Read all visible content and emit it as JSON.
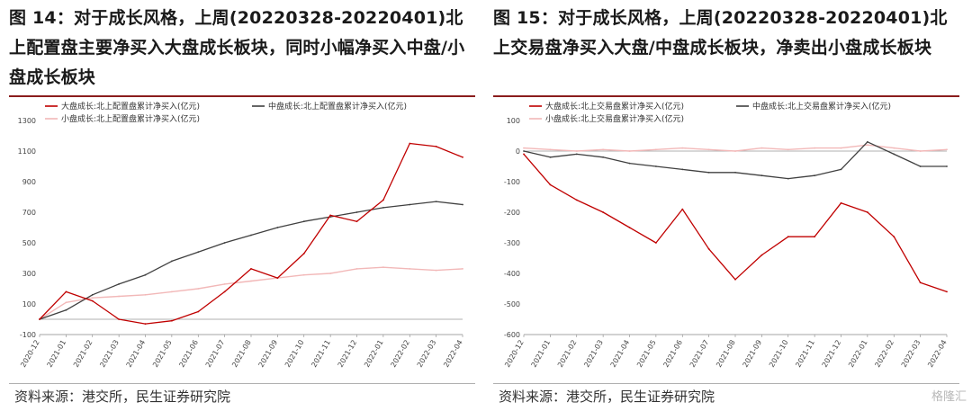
{
  "figures": [
    {
      "title": "图 14：对于成长风格，上周(20220328-20220401)北上配置盘主要净买入大盘成长板块，同时小幅净买入中盘/小盘成长板块",
      "source": "资料来源：港交所，民生证券研究院"
    },
    {
      "title": "图 15：对于成长风格，上周(20220328-20220401)北上交易盘净买入大盘/中盘成长板块，净卖出小盘成长板块",
      "source": "资料来源：港交所，民生证券研究院"
    }
  ],
  "watermark": "格隆汇",
  "colors": {
    "large": "#c00000",
    "mid": "#404040",
    "small": "#f2b8b8",
    "accent": "#8a1c1c"
  },
  "chart_data": [
    {
      "type": "line",
      "x": [
        "2020-12",
        "2021-01",
        "2021-02",
        "2021-03",
        "2021-04",
        "2021-05",
        "2021-06",
        "2021-07",
        "2021-08",
        "2021-09",
        "2021-10",
        "2021-11",
        "2021-12",
        "2022-01",
        "2022-02",
        "2022-03",
        "2022-04"
      ],
      "ylim": [
        -100,
        1300
      ],
      "yticks": [
        -100,
        100,
        300,
        500,
        700,
        900,
        1100,
        1300
      ],
      "series": [
        {
          "name": "大盘成长:北上配置盘累计净买入(亿元)",
          "values": [
            0,
            180,
            120,
            0,
            -30,
            -10,
            50,
            180,
            330,
            270,
            430,
            680,
            640,
            780,
            1150,
            1130,
            1060
          ]
        },
        {
          "name": "中盘成长:北上配置盘累计净买入(亿元)",
          "values": [
            0,
            60,
            160,
            230,
            290,
            380,
            440,
            500,
            550,
            600,
            640,
            670,
            700,
            730,
            750,
            770,
            750
          ]
        },
        {
          "name": "小盘成长:北上配置盘累计净买入(亿元)",
          "values": [
            0,
            110,
            140,
            150,
            160,
            180,
            200,
            230,
            250,
            270,
            290,
            300,
            330,
            340,
            330,
            320,
            330
          ]
        }
      ]
    },
    {
      "type": "line",
      "x": [
        "2020-12",
        "2021-01",
        "2021-02",
        "2021-03",
        "2021-04",
        "2021-05",
        "2021-06",
        "2021-07",
        "2021-08",
        "2021-09",
        "2021-10",
        "2021-11",
        "2021-12",
        "2022-01",
        "2022-02",
        "2022-03",
        "2022-04"
      ],
      "ylim": [
        -600,
        100
      ],
      "yticks": [
        -600,
        -500,
        -400,
        -300,
        -200,
        -100,
        0,
        100
      ],
      "series": [
        {
          "name": "大盘成长:北上交易盘累计净买入(亿元)",
          "values": [
            -10,
            -110,
            -160,
            -200,
            -250,
            -300,
            -190,
            -320,
            -420,
            -340,
            -280,
            -280,
            -170,
            -200,
            -280,
            -430,
            -460
          ]
        },
        {
          "name": "中盘成长:北上交易盘累计净买入(亿元)",
          "values": [
            0,
            -20,
            -10,
            -20,
            -40,
            -50,
            -60,
            -70,
            -70,
            -80,
            -90,
            -80,
            -60,
            30,
            -10,
            -50,
            -50
          ]
        },
        {
          "name": "小盘成长:北上交易盘累计净买入(亿元)",
          "values": [
            10,
            5,
            0,
            5,
            0,
            5,
            10,
            5,
            0,
            10,
            5,
            10,
            10,
            20,
            10,
            0,
            5
          ]
        }
      ]
    }
  ]
}
